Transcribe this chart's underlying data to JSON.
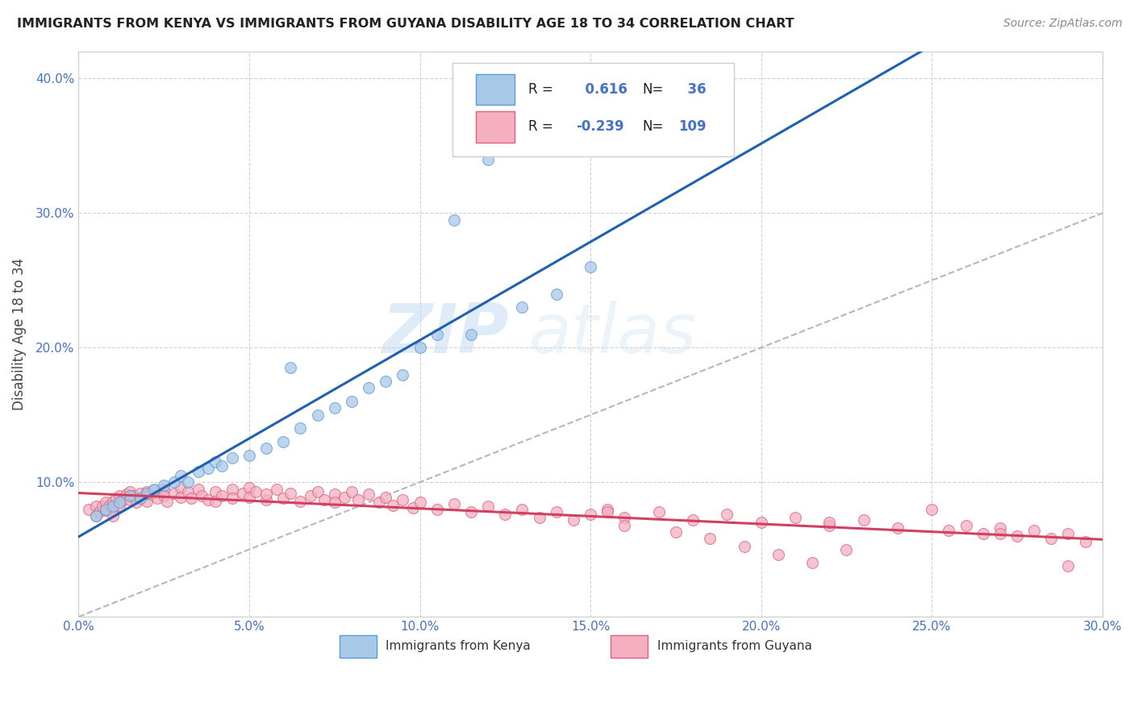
{
  "title": "IMMIGRANTS FROM KENYA VS IMMIGRANTS FROM GUYANA DISABILITY AGE 18 TO 34 CORRELATION CHART",
  "source": "Source: ZipAtlas.com",
  "ylabel": "Disability Age 18 to 34",
  "xlim": [
    0.0,
    0.3
  ],
  "ylim": [
    0.0,
    0.42
  ],
  "xticks": [
    0.0,
    0.05,
    0.1,
    0.15,
    0.2,
    0.25,
    0.3
  ],
  "yticks": [
    0.0,
    0.1,
    0.2,
    0.3,
    0.4
  ],
  "xtick_labels": [
    "0.0%",
    "5.0%",
    "10.0%",
    "15.0%",
    "20.0%",
    "25.0%",
    "30.0%"
  ],
  "ytick_labels": [
    "",
    "10.0%",
    "20.0%",
    "30.0%",
    "40.0%"
  ],
  "kenya_fill_color": "#a8c8e8",
  "kenya_edge_color": "#5b9bd5",
  "guyana_fill_color": "#f4b0c0",
  "guyana_edge_color": "#e06080",
  "kenya_line_color": "#2060b0",
  "guyana_line_color": "#d04060",
  "diag_line_color": "#b0b8c8",
  "R_kenya": 0.616,
  "N_kenya": 36,
  "R_guyana": -0.239,
  "N_guyana": 109,
  "legend_label_kenya": "Immigrants from Kenya",
  "legend_label_guyana": "Immigrants from Guyana",
  "watermark_text": "ZIP",
  "watermark_text2": "atlas",
  "blue_color": "#4472c4",
  "tick_color": "#4472c4",
  "title_color": "#222222",
  "source_color": "#888888",
  "ylabel_color": "#444444",
  "grid_color": "#cccccc",
  "legend_border_color": "#cccccc",
  "scatter_size": 100,
  "scatter_alpha": 0.75,
  "scatter_linewidth": 0.8,
  "kenya_x": [
    0.005,
    0.008,
    0.01,
    0.012,
    0.015,
    0.018,
    0.02,
    0.022,
    0.025,
    0.028,
    0.03,
    0.032,
    0.035,
    0.038,
    0.04,
    0.042,
    0.045,
    0.05,
    0.055,
    0.06,
    0.062,
    0.065,
    0.07,
    0.075,
    0.08,
    0.085,
    0.09,
    0.095,
    0.1,
    0.105,
    0.11,
    0.115,
    0.12,
    0.13,
    0.14,
    0.15
  ],
  "kenya_y": [
    0.075,
    0.08,
    0.082,
    0.085,
    0.09,
    0.088,
    0.092,
    0.095,
    0.098,
    0.1,
    0.105,
    0.1,
    0.108,
    0.11,
    0.115,
    0.112,
    0.118,
    0.12,
    0.125,
    0.13,
    0.185,
    0.14,
    0.15,
    0.155,
    0.16,
    0.17,
    0.175,
    0.18,
    0.2,
    0.21,
    0.295,
    0.21,
    0.34,
    0.23,
    0.24,
    0.26
  ],
  "guyana_x": [
    0.003,
    0.005,
    0.005,
    0.006,
    0.007,
    0.008,
    0.008,
    0.009,
    0.01,
    0.01,
    0.01,
    0.011,
    0.012,
    0.012,
    0.013,
    0.014,
    0.015,
    0.015,
    0.016,
    0.017,
    0.018,
    0.018,
    0.02,
    0.02,
    0.021,
    0.022,
    0.023,
    0.025,
    0.025,
    0.026,
    0.028,
    0.03,
    0.03,
    0.032,
    0.033,
    0.035,
    0.036,
    0.038,
    0.04,
    0.04,
    0.042,
    0.045,
    0.045,
    0.048,
    0.05,
    0.05,
    0.052,
    0.055,
    0.055,
    0.058,
    0.06,
    0.062,
    0.065,
    0.068,
    0.07,
    0.072,
    0.075,
    0.075,
    0.078,
    0.08,
    0.082,
    0.085,
    0.088,
    0.09,
    0.092,
    0.095,
    0.098,
    0.1,
    0.105,
    0.11,
    0.115,
    0.12,
    0.125,
    0.13,
    0.135,
    0.14,
    0.145,
    0.15,
    0.155,
    0.16,
    0.17,
    0.18,
    0.19,
    0.2,
    0.21,
    0.22,
    0.23,
    0.24,
    0.25,
    0.255,
    0.26,
    0.265,
    0.27,
    0.275,
    0.28,
    0.285,
    0.29,
    0.295,
    0.155,
    0.22,
    0.27,
    0.29,
    0.16,
    0.175,
    0.185,
    0.195,
    0.205,
    0.215,
    0.225
  ],
  "guyana_y": [
    0.08,
    0.082,
    0.075,
    0.078,
    0.082,
    0.085,
    0.079,
    0.083,
    0.086,
    0.08,
    0.075,
    0.088,
    0.09,
    0.083,
    0.087,
    0.091,
    0.093,
    0.087,
    0.09,
    0.085,
    0.092,
    0.088,
    0.093,
    0.086,
    0.091,
    0.094,
    0.088,
    0.095,
    0.09,
    0.086,
    0.092,
    0.096,
    0.089,
    0.093,
    0.088,
    0.095,
    0.09,
    0.087,
    0.093,
    0.086,
    0.09,
    0.095,
    0.088,
    0.092,
    0.096,
    0.089,
    0.093,
    0.087,
    0.091,
    0.095,
    0.088,
    0.092,
    0.086,
    0.09,
    0.093,
    0.087,
    0.091,
    0.085,
    0.089,
    0.093,
    0.087,
    0.091,
    0.085,
    0.089,
    0.083,
    0.087,
    0.081,
    0.085,
    0.08,
    0.084,
    0.078,
    0.082,
    0.076,
    0.08,
    0.074,
    0.078,
    0.072,
    0.076,
    0.08,
    0.074,
    0.078,
    0.072,
    0.076,
    0.07,
    0.074,
    0.068,
    0.072,
    0.066,
    0.08,
    0.064,
    0.068,
    0.062,
    0.066,
    0.06,
    0.064,
    0.058,
    0.062,
    0.056,
    0.078,
    0.07,
    0.062,
    0.038,
    0.068,
    0.063,
    0.058,
    0.052,
    0.046,
    0.04,
    0.05
  ]
}
